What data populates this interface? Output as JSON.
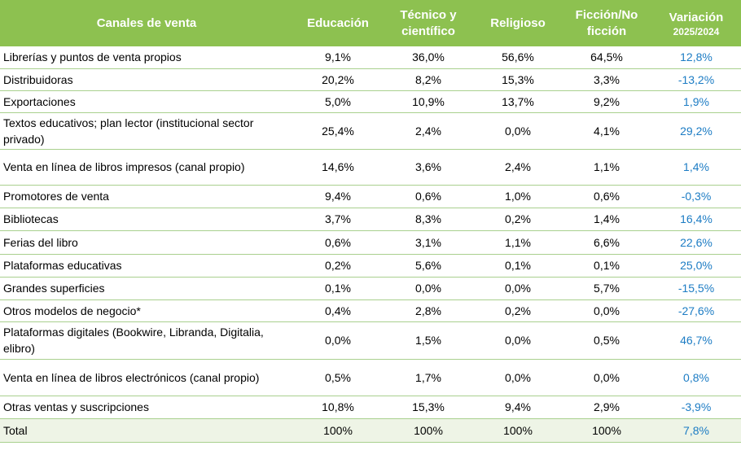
{
  "table": {
    "header": [
      "Canales de venta",
      "Educación",
      "Técnico y científico",
      "Religioso",
      "Ficción/No ficción",
      {
        "label": "Variación",
        "sub": "2025/2024"
      }
    ],
    "rows": [
      [
        "Librerías y puntos de venta propios",
        "9,1%",
        "36,0%",
        "56,6%",
        "64,5%",
        "12,8%"
      ],
      [
        "Distribuidoras",
        "20,2%",
        "8,2%",
        "15,3%",
        "3,3%",
        "-13,2%"
      ],
      [
        "Exportaciones",
        "5,0%",
        "10,9%",
        "13,7%",
        "9,2%",
        "1,9%"
      ],
      [
        "Textos educativos; plan lector (institucional sector privado)",
        "25,4%",
        "2,4%",
        "0,0%",
        "4,1%",
        "29,2%"
      ],
      [
        "Venta en línea de libros impresos (canal propio)",
        "14,6%",
        "3,6%",
        "2,4%",
        "1,1%",
        "1,4%"
      ],
      [
        "Promotores de venta",
        "9,4%",
        "0,6%",
        "1,0%",
        "0,6%",
        "-0,3%"
      ],
      [
        "Bibliotecas",
        "3,7%",
        "8,3%",
        "0,2%",
        "1,4%",
        "16,4%"
      ],
      [
        "Ferias del libro",
        "0,6%",
        "3,1%",
        "1,1%",
        "6,6%",
        "22,6%"
      ],
      [
        "Plataformas educativas",
        "0,2%",
        "5,6%",
        "0,1%",
        "0,1%",
        "25,0%"
      ],
      [
        "Grandes superficies",
        "0,1%",
        "0,0%",
        "0,0%",
        "5,7%",
        "-15,5%"
      ],
      [
        "Otros modelos de negocio*",
        "0,4%",
        "2,8%",
        "0,2%",
        "0,0%",
        "-27,6%"
      ],
      [
        "Plataformas digitales (Bookwire, Libranda, Digitalia, elibro)",
        "0,0%",
        "1,5%",
        "0,0%",
        "0,5%",
        "46,7%"
      ],
      [
        "Venta en línea de libros electrónicos (canal propio)",
        "0,5%",
        "1,7%",
        "0,0%",
        "0,0%",
        "0,8%"
      ],
      [
        "Otras ventas y suscripciones",
        "10,8%",
        "15,3%",
        "9,4%",
        "2,9%",
        "-3,9%"
      ]
    ],
    "total": [
      "Total",
      "100%",
      "100%",
      "100%",
      "100%",
      "7,8%"
    ]
  }
}
